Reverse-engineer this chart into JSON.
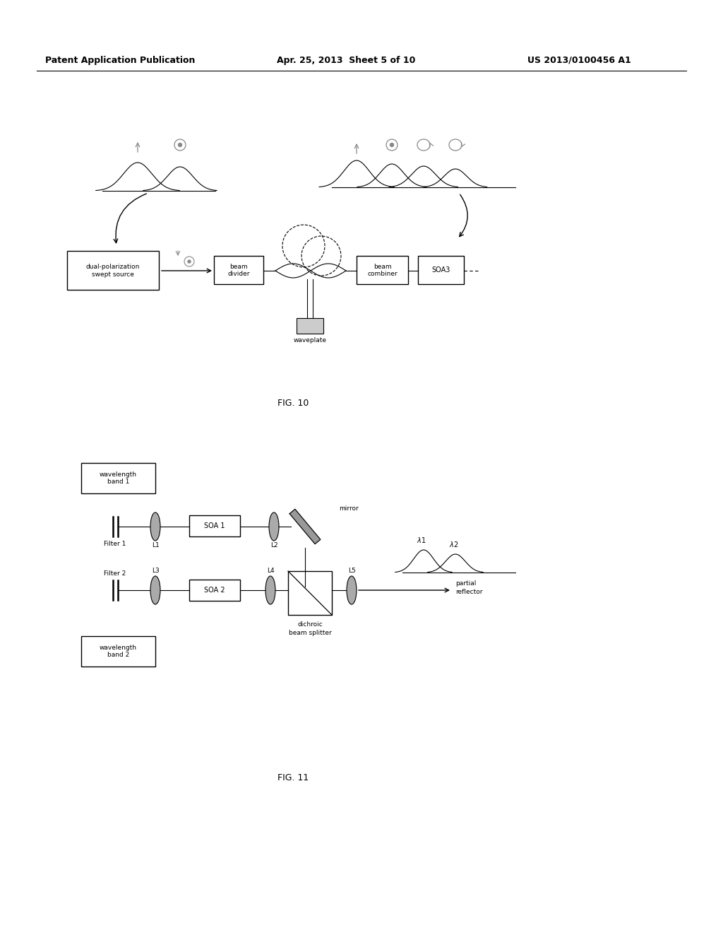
{
  "bg_color": "#ffffff",
  "header_left": "Patent Application Publication",
  "header_mid": "Apr. 25, 2013  Sheet 5 of 10",
  "header_right": "US 2013/0100456 A1",
  "fig10_caption": "FIG. 10",
  "fig11_caption": "FIG. 11"
}
